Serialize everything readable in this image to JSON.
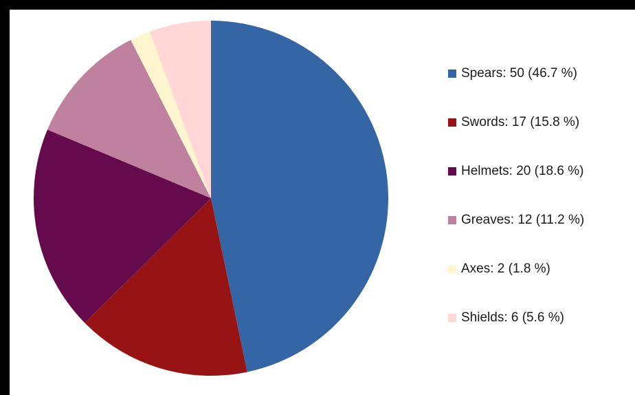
{
  "chart_data": {
    "type": "pie",
    "title": "",
    "slices": [
      {
        "label": "Spears",
        "value": 50,
        "percent": 46.7,
        "color": "#3465a4",
        "legend_text": "Spears: 50 (46.7 %)"
      },
      {
        "label": "Swords",
        "value": 17,
        "percent": 15.8,
        "color": "#981414",
        "legend_text": "Swords: 17 (15.8 %)"
      },
      {
        "label": "Helmets",
        "value": 20,
        "percent": 18.6,
        "color": "#650a4d",
        "legend_text": "Helmets: 20 (18.6 %)"
      },
      {
        "label": "Greaves",
        "value": 12,
        "percent": 11.2,
        "color": "#bf819e",
        "legend_text": "Greaves: 12 (11.2 %)"
      },
      {
        "label": "Axes",
        "value": 2,
        "percent": 1.8,
        "color": "#fff5ce",
        "legend_text": "Axes: 2 (1.8 %)"
      },
      {
        "label": "Shields",
        "value": 6,
        "percent": 5.6,
        "color": "#ffd7d7",
        "legend_text": "Shields: 6 (5.6 %)"
      }
    ],
    "legend_position": "right",
    "start_angle": "12 o'clock",
    "direction": "clockwise"
  }
}
